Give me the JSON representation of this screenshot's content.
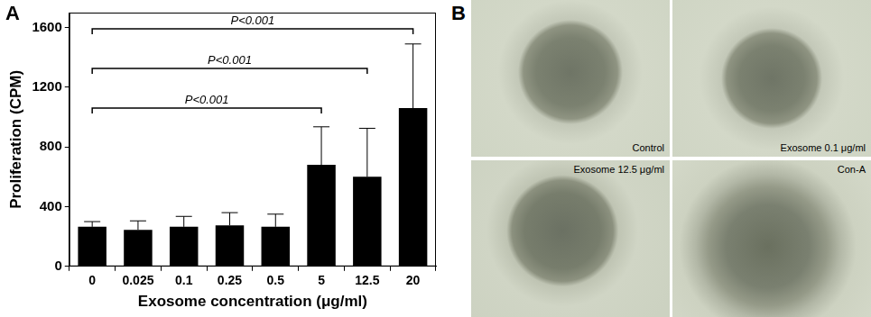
{
  "panel_labels": [
    "A",
    "B"
  ],
  "chart_data": {
    "type": "bar",
    "categories": [
      "0",
      "0.025",
      "0.1",
      "0.25",
      "0.5",
      "5",
      "12.5",
      "20"
    ],
    "values": [
      265,
      245,
      265,
      275,
      265,
      680,
      600,
      1060
    ],
    "errors": [
      35,
      60,
      70,
      85,
      85,
      255,
      325,
      430
    ],
    "color": "#000000",
    "x_label": "Exosome concentration (μg/ml)",
    "y_label": "Proliferation (CPM)",
    "ylim": [
      0,
      1700
    ],
    "yticks": [
      0,
      400,
      800,
      1200,
      1600
    ],
    "grid": false,
    "comparisons": [
      {
        "from": "0",
        "to": "5",
        "label": "P<0.001"
      },
      {
        "from": "0",
        "to": "12.5",
        "label": "P<0.001"
      },
      {
        "from": "0",
        "to": "20",
        "label": "P<0.001"
      }
    ]
  },
  "micrographs": [
    {
      "label": "Control"
    },
    {
      "label": "Exosome 0.1 μg/ml"
    },
    {
      "label": "Exosome 12.5 μg/ml"
    },
    {
      "label": "Con-A"
    }
  ]
}
